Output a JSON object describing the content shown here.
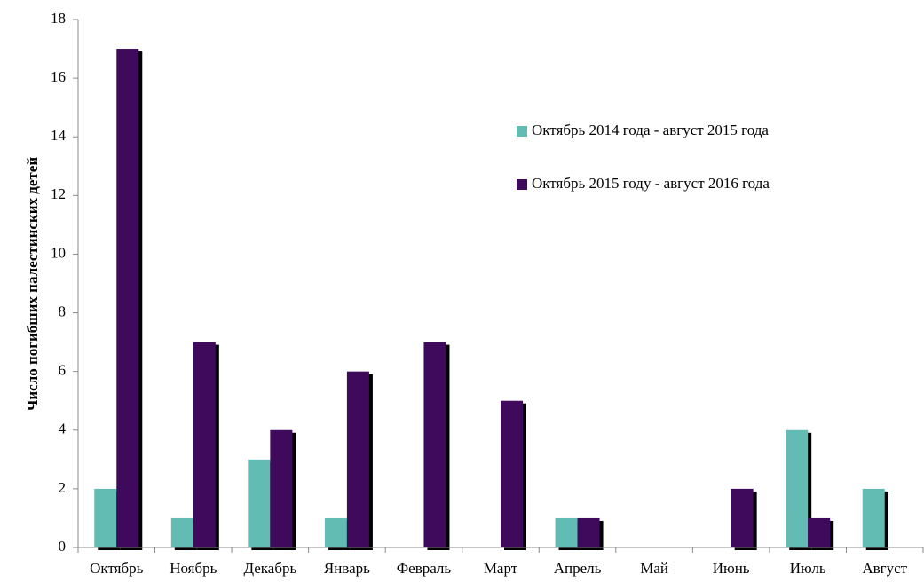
{
  "chart_data": {
    "type": "bar",
    "y_label": "Число погибших палестинских детей",
    "categories": [
      "Октябрь",
      "Ноябрь",
      "Декабрь",
      "Январь",
      "Февраль",
      "Март",
      "Апрель",
      "Май",
      "Июнь",
      "Июль",
      "Август"
    ],
    "series": [
      {
        "name": "Октябрь 2014 года - август 2015 года",
        "color": "#62bcb3",
        "values": [
          2,
          1,
          3,
          1,
          0,
          0,
          1,
          0,
          0,
          4,
          2
        ]
      },
      {
        "name": "Октябрь 2015 году - август 2016 года",
        "color": "#3f0a5c",
        "values": [
          17,
          7,
          4,
          6,
          7,
          5,
          1,
          0,
          2,
          1,
          0
        ]
      }
    ],
    "ylim": [
      0,
      18
    ],
    "yticks": [
      0,
      2,
      4,
      6,
      8,
      10,
      12,
      14,
      16,
      18
    ],
    "grid": false,
    "legend": "upper right"
  }
}
